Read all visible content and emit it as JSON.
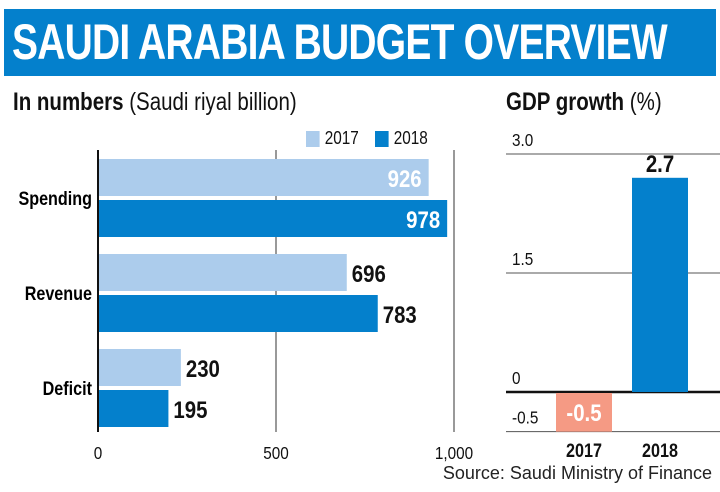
{
  "header": {
    "title": "SAUDI ARABIA BUDGET OVERVIEW"
  },
  "left_panel": {
    "title_bold": "In numbers",
    "title_rest": " (Saudi riyal billion)",
    "legend": [
      {
        "label": "2017",
        "color": "#acccec"
      },
      {
        "label": "2018",
        "color": "#0480cc"
      }
    ]
  },
  "right_panel": {
    "title_bold": "GDP growth",
    "title_rest": " (%)"
  },
  "source": "Source: Saudi Ministry of Finance",
  "chart_data": [
    {
      "type": "bar",
      "orientation": "horizontal",
      "title": "In numbers (Saudi riyal billion)",
      "categories": [
        "Spending",
        "Revenue",
        "Deficit"
      ],
      "series": [
        {
          "name": "2017",
          "color": "#acccec",
          "values": [
            926,
            696,
            230
          ]
        },
        {
          "name": "2018",
          "color": "#0480cc",
          "values": [
            978,
            783,
            195
          ]
        }
      ],
      "xlim": [
        0,
        1000
      ],
      "xticks": [
        0,
        500,
        1000
      ],
      "xtick_labels": [
        "0",
        "500",
        "1,000"
      ],
      "legend": "top-right",
      "grid": true
    },
    {
      "type": "bar",
      "title": "GDP growth (%)",
      "categories": [
        "2017",
        "2018"
      ],
      "values": [
        -0.5,
        2.7
      ],
      "colors": [
        "#f59a84",
        "#0480cc"
      ],
      "ylim": [
        -0.5,
        3.0
      ],
      "yticks": [
        3.0,
        1.5,
        0,
        -0.5
      ],
      "ytick_labels": [
        "3.0",
        "1.5",
        "0",
        "-0.5"
      ],
      "grid": true
    }
  ]
}
